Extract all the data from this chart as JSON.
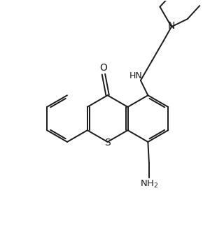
{
  "background_color": "#ffffff",
  "line_color": "#1a1a1a",
  "line_width": 1.4,
  "figsize": [
    3.2,
    3.36
  ],
  "dpi": 100,
  "xlim": [
    0,
    10
  ],
  "ylim": [
    0,
    10.5
  ]
}
